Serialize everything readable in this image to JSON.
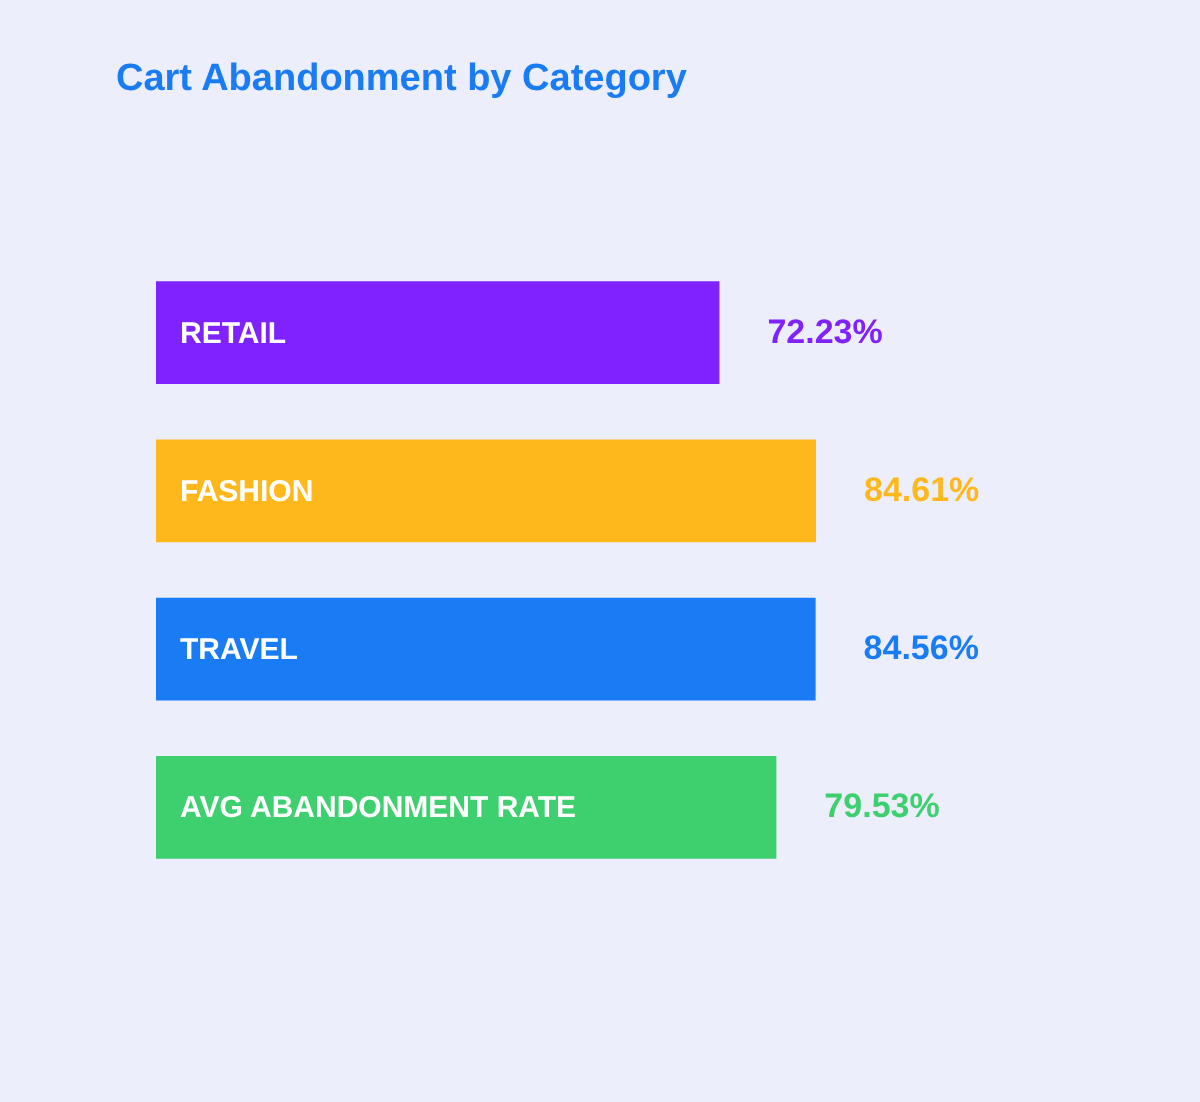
{
  "chart_data": {
    "type": "bar",
    "orientation": "horizontal",
    "title": "Cart Abandonment by Category",
    "categories": [
      "RETAIL",
      "FASHION",
      "TRAVEL",
      "AVG ABANDONMENT RATE"
    ],
    "values": [
      72.23,
      84.61,
      84.56,
      79.53
    ],
    "value_labels": [
      "72.23%",
      "84.61%",
      "84.56%",
      "79.53%"
    ],
    "colors": [
      "#7f22fd",
      "#ffb81c",
      "#1a7cf5",
      "#3ecf6f"
    ],
    "tick_labels": false
  }
}
